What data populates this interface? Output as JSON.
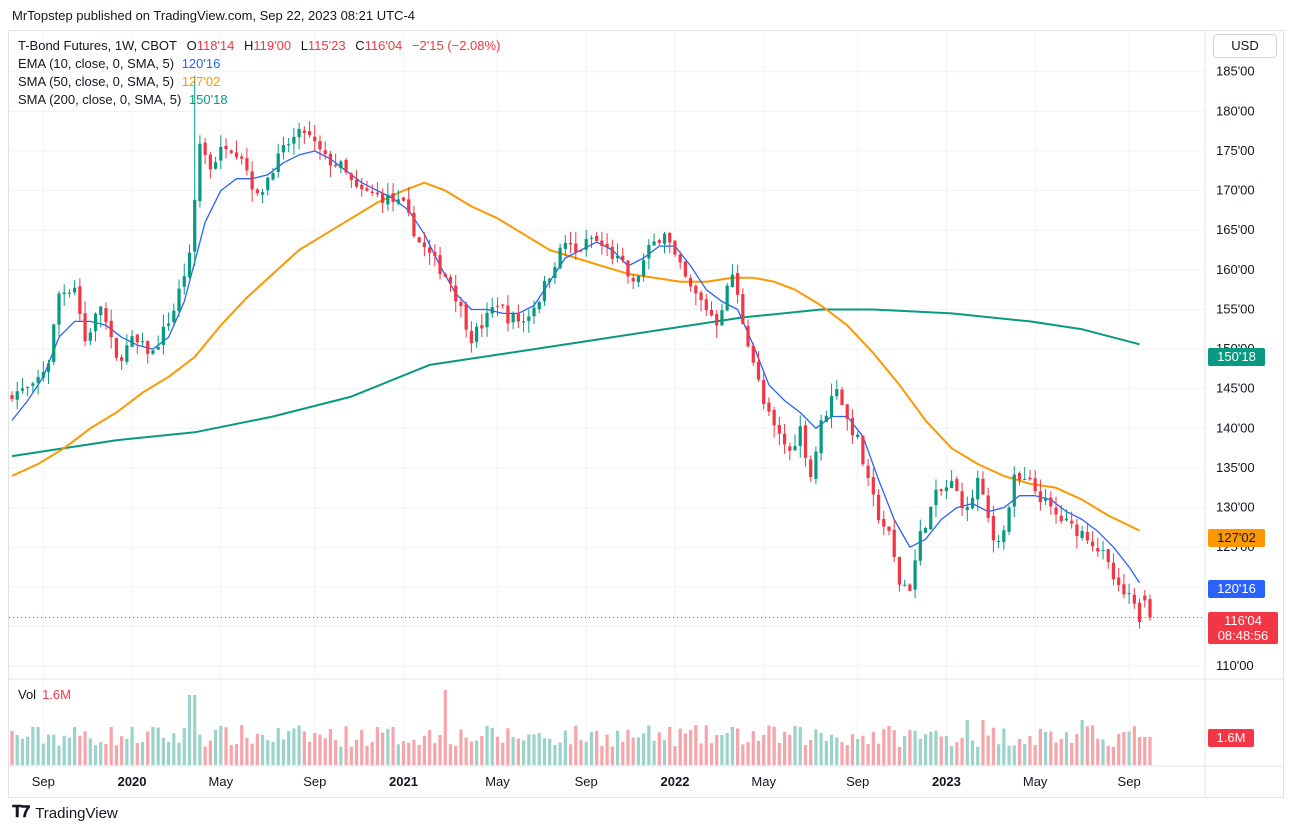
{
  "header": {
    "published_line": "MrTopstep published on TradingView.com, Sep 22, 2023 08:21 UTC-4"
  },
  "currency_button": "USD",
  "legend": {
    "symbol": "T-Bond Futures, 1W, CBOT",
    "ohlc": [
      {
        "label": "O",
        "value": "118'14"
      },
      {
        "label": "H",
        "value": "119'00"
      },
      {
        "label": "L",
        "value": "115'23"
      },
      {
        "label": "C",
        "value": "116'04"
      }
    ],
    "change": "−2'15 (−2.08%)",
    "studies": [
      {
        "name": "EMA (10, close, 0, SMA, 5)",
        "value": "120'16",
        "color": "#2962ff"
      },
      {
        "name": "SMA (50, close, 0, SMA, 5)",
        "value": "127'02",
        "color": "#ff9800"
      },
      {
        "name": "SMA (200, close, 0, SMA, 5)",
        "value": "150'18",
        "color": "#089981"
      }
    ]
  },
  "volume_legend": {
    "label": "Vol",
    "value": "1.6M"
  },
  "price_tags": {
    "sma200": {
      "text": "150'18",
      "color": "#089981"
    },
    "sma50": {
      "text": "127'02",
      "color": "#ff9800"
    },
    "ema10": {
      "text": "120'16",
      "color": "#2962ff"
    },
    "last_price": "116'04",
    "countdown": "08:48:56",
    "volume": "1.6M"
  },
  "footer": {
    "brand": "TradingView"
  },
  "colors": {
    "up": "#089981",
    "down": "#f23645",
    "up_vol": "#9bd3cb",
    "down_vol": "#f6a5ab"
  },
  "chart_data": {
    "type": "candlestick",
    "title": "T-Bond Futures, 1W, CBOT",
    "price_unit": "points (32nds)",
    "y_axis_ticks": [
      "185'00",
      "180'00",
      "175'00",
      "170'00",
      "165'00",
      "160'00",
      "155'00",
      "150'00",
      "145'00",
      "140'00",
      "135'00",
      "130'00",
      "125'00",
      "120'00",
      "115'00",
      "110'00"
    ],
    "y_axis_values": [
      185,
      180,
      175,
      170,
      165,
      160,
      155,
      150,
      145,
      140,
      135,
      130,
      125,
      120,
      115,
      110
    ],
    "y_range": [
      108.5,
      189
    ],
    "x_axis_ticks": [
      {
        "label": "Sep",
        "week": 6,
        "bold": false
      },
      {
        "label": "2020",
        "week": 23,
        "bold": true
      },
      {
        "label": "May",
        "week": 40,
        "bold": false
      },
      {
        "label": "Sep",
        "week": 58,
        "bold": false
      },
      {
        "label": "2021",
        "week": 75,
        "bold": true
      },
      {
        "label": "May",
        "week": 93,
        "bold": false
      },
      {
        "label": "Sep",
        "week": 110,
        "bold": false
      },
      {
        "label": "2022",
        "week": 127,
        "bold": true
      },
      {
        "label": "May",
        "week": 144,
        "bold": false
      },
      {
        "label": "Sep",
        "week": 162,
        "bold": false
      },
      {
        "label": "2023",
        "week": 179,
        "bold": true
      },
      {
        "label": "May",
        "week": 196,
        "bold": false
      },
      {
        "label": "Sep",
        "week": 214,
        "bold": false
      }
    ],
    "total_weeks": 219,
    "close_path": [
      [
        0,
        144.5
      ],
      [
        4,
        145.0
      ],
      [
        7,
        148.5
      ],
      [
        9,
        157.0
      ],
      [
        12,
        158.0
      ],
      [
        14,
        151.0
      ],
      [
        17,
        155.5
      ],
      [
        20,
        148.5
      ],
      [
        23,
        151.0
      ],
      [
        27,
        149.5
      ],
      [
        31,
        155.0
      ],
      [
        33,
        159.5
      ],
      [
        34,
        161.5
      ],
      [
        36,
        176.0
      ],
      [
        38,
        173.0
      ],
      [
        41,
        176.0
      ],
      [
        44,
        174.5
      ],
      [
        47,
        169.0
      ],
      [
        50,
        173.0
      ],
      [
        53,
        176.0
      ],
      [
        56,
        177.5
      ],
      [
        60,
        174.0
      ],
      [
        63,
        173.0
      ],
      [
        66,
        170.0
      ],
      [
        69,
        169.5
      ],
      [
        72,
        169.0
      ],
      [
        75,
        168.0
      ],
      [
        78,
        163.5
      ],
      [
        81,
        161.0
      ],
      [
        84,
        158.5
      ],
      [
        86,
        155.0
      ],
      [
        88,
        151.5
      ],
      [
        90,
        153.0
      ],
      [
        93,
        156.0
      ],
      [
        95,
        154.0
      ],
      [
        98,
        153.5
      ],
      [
        101,
        156.5
      ],
      [
        104,
        161.0
      ],
      [
        106,
        163.5
      ],
      [
        108,
        162.0
      ],
      [
        111,
        164.0
      ],
      [
        114,
        162.5
      ],
      [
        117,
        160.5
      ],
      [
        119,
        158.0
      ],
      [
        122,
        162.5
      ],
      [
        125,
        165.0
      ],
      [
        127,
        161.5
      ],
      [
        130,
        157.5
      ],
      [
        132,
        156.0
      ],
      [
        135,
        153.5
      ],
      [
        138,
        159.5
      ],
      [
        140,
        153.5
      ],
      [
        142,
        148.5
      ],
      [
        144,
        143.0
      ],
      [
        146,
        140.0
      ],
      [
        149,
        137.0
      ],
      [
        151,
        140.0
      ],
      [
        153,
        134.0
      ],
      [
        155,
        140.5
      ],
      [
        158,
        145.5
      ],
      [
        160,
        141.0
      ],
      [
        162,
        138.5
      ],
      [
        164,
        133.0
      ],
      [
        166,
        129.0
      ],
      [
        168,
        126.5
      ],
      [
        170,
        120.5
      ],
      [
        172,
        120.0
      ],
      [
        174,
        126.5
      ],
      [
        177,
        131.5
      ],
      [
        180,
        133.0
      ],
      [
        183,
        129.5
      ],
      [
        185,
        133.5
      ],
      [
        188,
        126.0
      ],
      [
        190,
        127.0
      ],
      [
        192,
        133.5
      ],
      [
        195,
        133.0
      ],
      [
        198,
        130.5
      ],
      [
        200,
        129.0
      ],
      [
        203,
        127.5
      ],
      [
        206,
        126.5
      ],
      [
        209,
        124.0
      ],
      [
        212,
        119.5
      ],
      [
        214,
        118.5
      ],
      [
        216,
        116.1
      ]
    ],
    "ema10_path": [
      [
        0,
        141.0
      ],
      [
        3,
        143.5
      ],
      [
        6,
        146.5
      ],
      [
        9,
        151.5
      ],
      [
        12,
        153.5
      ],
      [
        15,
        153.5
      ],
      [
        18,
        153.0
      ],
      [
        21,
        151.5
      ],
      [
        24,
        150.5
      ],
      [
        27,
        150.0
      ],
      [
        30,
        151.5
      ],
      [
        33,
        156.0
      ],
      [
        35,
        161.0
      ],
      [
        37,
        166.0
      ],
      [
        40,
        170.0
      ],
      [
        43,
        171.5
      ],
      [
        46,
        171.5
      ],
      [
        49,
        172.0
      ],
      [
        52,
        173.5
      ],
      [
        55,
        174.5
      ],
      [
        58,
        175.0
      ],
      [
        61,
        174.0
      ],
      [
        64,
        172.5
      ],
      [
        67,
        171.0
      ],
      [
        70,
        170.0
      ],
      [
        73,
        169.0
      ],
      [
        76,
        167.5
      ],
      [
        79,
        164.5
      ],
      [
        82,
        160.5
      ],
      [
        85,
        157.0
      ],
      [
        88,
        155.0
      ],
      [
        91,
        155.0
      ],
      [
        94,
        154.5
      ],
      [
        97,
        154.5
      ],
      [
        100,
        155.5
      ],
      [
        103,
        158.5
      ],
      [
        106,
        161.5
      ],
      [
        109,
        162.5
      ],
      [
        112,
        163.5
      ],
      [
        115,
        162.5
      ],
      [
        118,
        160.5
      ],
      [
        121,
        161.5
      ],
      [
        124,
        163.0
      ],
      [
        127,
        163.0
      ],
      [
        130,
        160.5
      ],
      [
        133,
        157.5
      ],
      [
        136,
        156.0
      ],
      [
        139,
        155.0
      ],
      [
        142,
        150.5
      ],
      [
        145,
        145.5
      ],
      [
        148,
        143.5
      ],
      [
        151,
        142.0
      ],
      [
        154,
        140.0
      ],
      [
        157,
        141.5
      ],
      [
        160,
        141.5
      ],
      [
        163,
        139.0
      ],
      [
        166,
        133.5
      ],
      [
        169,
        128.5
      ],
      [
        172,
        125.0
      ],
      [
        175,
        126.0
      ],
      [
        178,
        128.5
      ],
      [
        181,
        130.0
      ],
      [
        184,
        130.5
      ],
      [
        187,
        129.5
      ],
      [
        190,
        130.0
      ],
      [
        193,
        131.5
      ],
      [
        196,
        131.5
      ],
      [
        199,
        131.0
      ],
      [
        202,
        129.5
      ],
      [
        205,
        128.5
      ],
      [
        208,
        127.0
      ],
      [
        211,
        125.0
      ],
      [
        214,
        122.5
      ],
      [
        216,
        120.5
      ]
    ],
    "sma50_path": [
      [
        0,
        134.0
      ],
      [
        5,
        135.5
      ],
      [
        10,
        137.5
      ],
      [
        15,
        140.0
      ],
      [
        20,
        142.0
      ],
      [
        25,
        144.5
      ],
      [
        30,
        146.5
      ],
      [
        35,
        149.0
      ],
      [
        40,
        153.0
      ],
      [
        45,
        156.5
      ],
      [
        50,
        159.5
      ],
      [
        55,
        162.5
      ],
      [
        60,
        164.5
      ],
      [
        65,
        166.5
      ],
      [
        70,
        168.5
      ],
      [
        75,
        170.0
      ],
      [
        79,
        171.0
      ],
      [
        83,
        170.0
      ],
      [
        88,
        168.0
      ],
      [
        93,
        166.5
      ],
      [
        98,
        164.5
      ],
      [
        103,
        162.5
      ],
      [
        108,
        161.5
      ],
      [
        113,
        160.5
      ],
      [
        118,
        159.5
      ],
      [
        123,
        159.0
      ],
      [
        128,
        158.5
      ],
      [
        133,
        158.5
      ],
      [
        138,
        159.0
      ],
      [
        142,
        159.0
      ],
      [
        146,
        158.5
      ],
      [
        150,
        157.5
      ],
      [
        155,
        155.5
      ],
      [
        160,
        153.0
      ],
      [
        165,
        149.5
      ],
      [
        170,
        145.5
      ],
      [
        175,
        141.0
      ],
      [
        180,
        137.5
      ],
      [
        185,
        135.5
      ],
      [
        190,
        134.0
      ],
      [
        195,
        133.0
      ],
      [
        200,
        132.5
      ],
      [
        205,
        131.0
      ],
      [
        210,
        129.0
      ],
      [
        216,
        127.1
      ]
    ],
    "sma200_path": [
      [
        0,
        136.5
      ],
      [
        20,
        138.5
      ],
      [
        35,
        139.5
      ],
      [
        50,
        141.5
      ],
      [
        65,
        144.0
      ],
      [
        80,
        148.0
      ],
      [
        95,
        149.5
      ],
      [
        110,
        151.0
      ],
      [
        125,
        152.5
      ],
      [
        140,
        154.0
      ],
      [
        155,
        155.0
      ],
      [
        165,
        155.0
      ],
      [
        180,
        154.5
      ],
      [
        195,
        153.5
      ],
      [
        205,
        152.5
      ],
      [
        216,
        150.6
      ]
    ],
    "last_price": 116.13,
    "notes": "Weekly candlesticks approximated from the chart; volume pane below in shares (1.6M current)."
  }
}
